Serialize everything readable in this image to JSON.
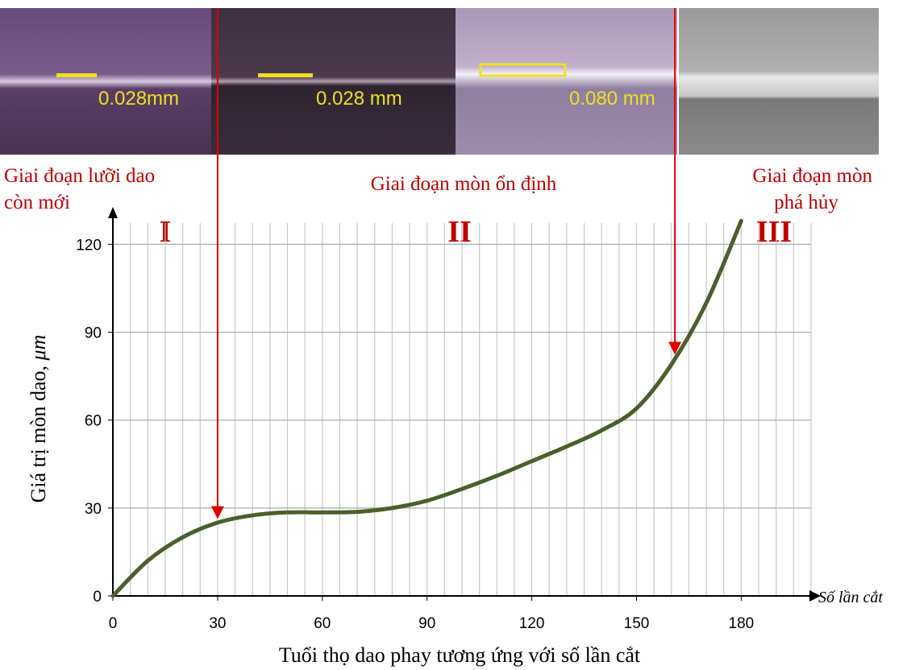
{
  "chart_data": {
    "type": "line",
    "photo_labels": [
      "0.028mm",
      "0.028 mm",
      "0.080 mm"
    ],
    "stage_labels": [
      [
        "Giai đoạn lưỡi dao",
        "còn mới"
      ],
      [
        "Giai đoạn mòn ổn định"
      ],
      [
        "Giai đoạn mòn",
        "phá hủy"
      ]
    ],
    "stage_numerals": [
      "I",
      "II",
      "III"
    ],
    "x_label": "Tuổi thọ dao phay tương ứng với số lần cắt",
    "x_axis_end_label": "Số lần cắt",
    "y_label": [
      "Giá trị mòn dao, ",
      "μm"
    ],
    "x": [
      0,
      10,
      20,
      30,
      40,
      50,
      60,
      70,
      80,
      90,
      100,
      110,
      120,
      130,
      140,
      150,
      160,
      170,
      180
    ],
    "series": [
      {
        "name": null,
        "color": "#4a5f2a",
        "values": [
          0,
          12,
          20,
          25,
          27.5,
          28.5,
          28.5,
          28.7,
          30,
          32.5,
          36.5,
          41,
          46,
          51,
          56.5,
          64,
          79,
          100,
          128
        ]
      }
    ],
    "stage_arrows_x": [
      30,
      161
    ],
    "xlim": [
      0,
      200
    ],
    "ylim": [
      0,
      130
    ],
    "xticks": [
      0,
      30,
      60,
      90,
      120,
      150,
      180
    ],
    "yticks": [
      0,
      30,
      60,
      90,
      120
    ],
    "x_gridlines": [
      5,
      10,
      15,
      20,
      25,
      30,
      35,
      40,
      45,
      50,
      55,
      60,
      65,
      70,
      75,
      80,
      85,
      90,
      95,
      100,
      105,
      110,
      115,
      120,
      125,
      130,
      135,
      140,
      145,
      150,
      155,
      160,
      165,
      170,
      175,
      180,
      185,
      190,
      195,
      200
    ],
    "grid": true
  }
}
